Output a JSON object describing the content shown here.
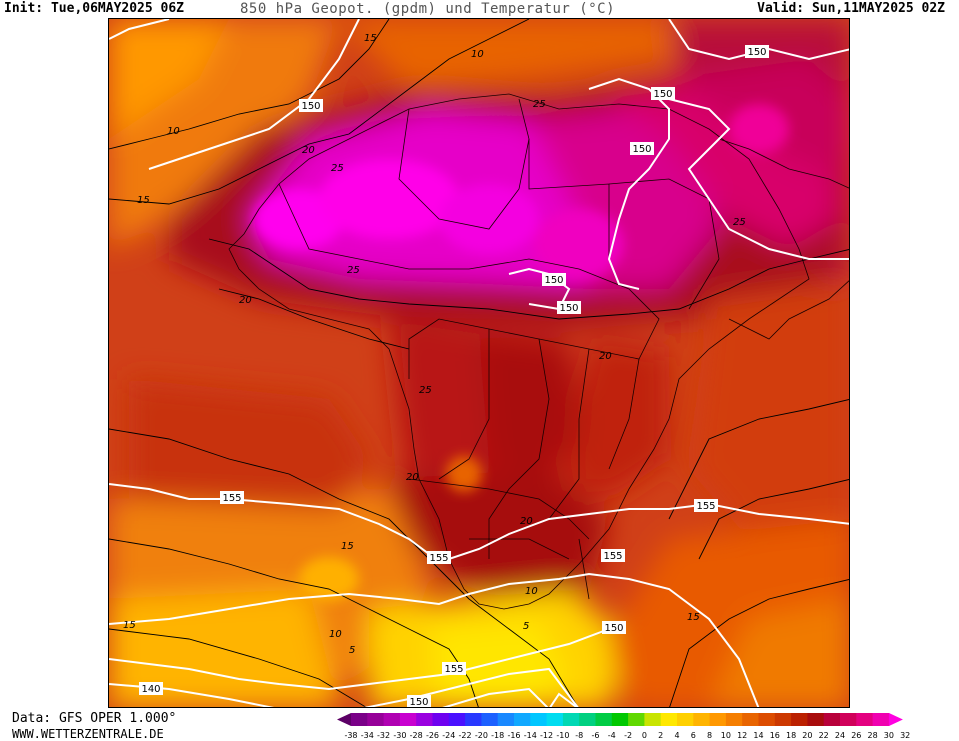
{
  "header": {
    "init": "Init: Tue,06MAY2025 06Z",
    "title": "850 hPa Geopot. (gpdm) und Temperatur (°C)",
    "valid": "Valid: Sun,11MAY2025 02Z"
  },
  "footer": {
    "data_source": "Data: GFS OPER 1.000°",
    "website": "WWW.WETTERZENTRALE.DE"
  },
  "map": {
    "geopotential_labels": [
      "150",
      "150",
      "150",
      "150",
      "150",
      "150",
      "155",
      "155",
      "155",
      "155",
      "150",
      "155",
      "140",
      "150"
    ],
    "temperature_labels": [
      "15",
      "10",
      "10",
      "15",
      "20",
      "25",
      "25",
      "20",
      "25",
      "25",
      "20",
      "25",
      "20",
      "20",
      "15",
      "15",
      "10",
      "10",
      "5",
      "15",
      "5"
    ]
  },
  "colorbar": {
    "labels": [
      "-38",
      "-34",
      "-32",
      "-30",
      "-28",
      "-26",
      "-24",
      "-22",
      "-20",
      "-18",
      "-16",
      "-14",
      "-12",
      "-10",
      "-8",
      "-6",
      "-4",
      "-2",
      "0",
      "2",
      "4",
      "6",
      "8",
      "10",
      "12",
      "14",
      "16",
      "18",
      "20",
      "22",
      "24",
      "26",
      "28",
      "30",
      "32"
    ],
    "colors": [
      "#5c0066",
      "#7a0088",
      "#960099",
      "#b000b2",
      "#c800d0",
      "#9a00e0",
      "#6e00f0",
      "#4a10ff",
      "#2838ff",
      "#1c60ff",
      "#1888ff",
      "#10a8ff",
      "#00c6ff",
      "#00dcf0",
      "#00d8b4",
      "#00d080",
      "#00cc44",
      "#00c800",
      "#60d800",
      "#c8e400",
      "#ffe800",
      "#ffd000",
      "#ffb400",
      "#ff9800",
      "#f57e00",
      "#e86400",
      "#dc4c00",
      "#cc3800",
      "#bb2000",
      "#a80c0c",
      "#b8003a",
      "#d0005a",
      "#e40080",
      "#f000b0",
      "#ff00e0"
    ]
  }
}
